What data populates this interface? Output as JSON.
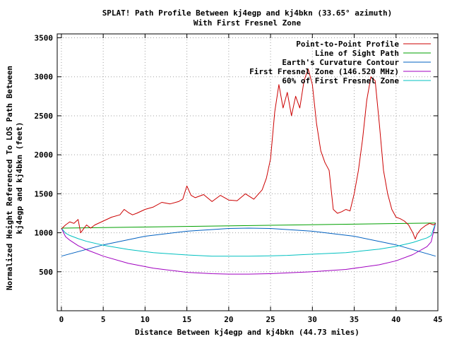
{
  "chart_data": {
    "type": "line",
    "title": "SPLAT! Path Profile Between kj4egp and kj4bkn (33.65° azimuth)",
    "subtitle": "With First Fresnel Zone",
    "xlabel": "Distance Between kj4egp and kj4bkn (44.73 miles)",
    "ylabel_lines": [
      "Normalized Height Referenced To LOS Path Between",
      "kj4egp and kj4bkn (feet)"
    ],
    "xlim": [
      -0.5,
      45
    ],
    "ylim": [
      0,
      3550
    ],
    "x_ticks": [
      0,
      5,
      10,
      15,
      20,
      25,
      30,
      35,
      40,
      45
    ],
    "y_ticks": [
      500,
      1000,
      1500,
      2000,
      2500,
      3000,
      3500
    ],
    "grid": true,
    "legend_position": "top-right",
    "series": [
      {
        "name": "Point-to-Point Profile",
        "color": "#cc0000",
        "x": [
          0,
          0.5,
          1,
          1.5,
          2,
          2.3,
          3,
          3.5,
          4,
          5,
          6,
          7,
          7.5,
          8,
          8.5,
          9,
          10,
          11,
          12,
          13,
          14,
          14.5,
          15,
          15.5,
          16,
          17,
          18,
          19,
          20,
          21,
          22,
          23,
          24,
          24.5,
          25,
          25.5,
          26,
          26.5,
          27,
          27.5,
          28,
          28.5,
          29,
          29.5,
          30,
          30.5,
          31,
          31.5,
          32,
          32.5,
          33,
          33.5,
          34,
          34.5,
          35,
          35.5,
          36,
          36.5,
          37,
          37.5,
          38,
          38.5,
          39,
          39.5,
          40,
          40.5,
          41,
          41.5,
          42,
          42.3,
          42.5,
          43,
          43.5,
          44,
          44.5,
          44.73
        ],
        "y": [
          1050,
          1100,
          1140,
          1120,
          1170,
          1000,
          1100,
          1060,
          1100,
          1150,
          1200,
          1230,
          1300,
          1260,
          1230,
          1250,
          1300,
          1330,
          1390,
          1370,
          1400,
          1430,
          1600,
          1480,
          1450,
          1490,
          1400,
          1480,
          1420,
          1410,
          1500,
          1430,
          1550,
          1700,
          1950,
          2550,
          2900,
          2600,
          2800,
          2500,
          2750,
          2600,
          2950,
          3100,
          2900,
          2400,
          2050,
          1900,
          1800,
          1300,
          1250,
          1270,
          1300,
          1280,
          1500,
          1800,
          2200,
          2700,
          3000,
          2950,
          2400,
          1800,
          1500,
          1300,
          1200,
          1180,
          1150,
          1100,
          1000,
          920,
          980,
          1050,
          1090,
          1120,
          1100,
          1120
        ]
      },
      {
        "name": "Line of Sight Path",
        "color": "#00a000",
        "x": [
          0,
          44.73
        ],
        "y": [
          1060,
          1125
        ]
      },
      {
        "name": "Earth's Curvature Contour",
        "color": "#0060c0",
        "x": [
          0,
          5,
          10,
          15,
          20,
          22.4,
          25,
          30,
          35,
          40,
          44.73
        ],
        "y": [
          700,
          845,
          955,
          1020,
          1055,
          1060,
          1055,
          1020,
          955,
          845,
          700
        ]
      },
      {
        "name": "First Fresnel Zone (146.520 MHz)",
        "color": "#a000c0",
        "x": [
          0,
          0.5,
          1,
          2,
          3,
          5,
          8,
          11,
          15,
          18,
          20,
          22.4,
          25,
          27,
          30,
          34,
          38,
          40,
          42,
          43.7,
          44.2,
          44.73
        ],
        "y": [
          1060,
          950,
          905,
          835,
          782,
          700,
          608,
          545,
          493,
          475,
          470,
          470,
          475,
          485,
          500,
          530,
          590,
          640,
          720,
          822,
          884,
          1125
        ]
      },
      {
        "name": "60% of First Fresnel Zone",
        "color": "#00c0c0",
        "x": [
          0,
          0.5,
          1,
          2,
          3,
          5,
          8,
          11,
          15,
          18,
          20,
          22.4,
          25,
          27,
          30,
          34,
          38,
          40,
          42,
          43.7,
          44.2,
          44.73
        ],
        "y": [
          1060,
          995,
          965,
          925,
          890,
          840,
          785,
          745,
          715,
          700,
          700,
          700,
          705,
          710,
          725,
          745,
          790,
          825,
          875,
          935,
          965,
          1125
        ]
      }
    ]
  }
}
